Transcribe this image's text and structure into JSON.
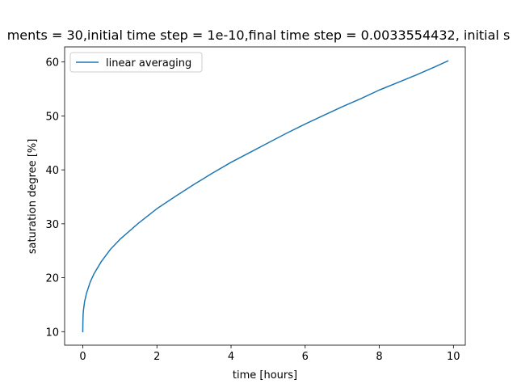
{
  "chart_data": {
    "type": "line",
    "title": "ments = 30,initial time step = 1e-10,final time step = 0.0033554432, initial s",
    "xlabel": "time [hours]",
    "ylabel": "saturation degree [%]",
    "xlim": [
      -0.49,
      10.32
    ],
    "ylim": [
      7.5,
      62.8
    ],
    "xticks": [
      "0",
      "2",
      "4",
      "6",
      "8",
      "10"
    ],
    "yticks": [
      "10",
      "20",
      "30",
      "40",
      "50",
      "60"
    ],
    "grid": false,
    "legend_position": "upper-left",
    "series": [
      {
        "name": "linear averaging",
        "color": "#1f77b4",
        "x": [
          0,
          0.001,
          0.005,
          0.01,
          0.02,
          0.05,
          0.1,
          0.2,
          0.3,
          0.5,
          0.75,
          1.0,
          1.5,
          2.0,
          2.5,
          3.0,
          3.5,
          4.0,
          4.5,
          5.0,
          5.5,
          6.0,
          6.5,
          7.0,
          7.5,
          8.0,
          8.5,
          9.0,
          9.5,
          9.85
        ],
        "y": [
          10.0,
          11.1,
          12.4,
          13.3,
          14.1,
          15.6,
          17.1,
          19.2,
          20.7,
          23.0,
          25.3,
          27.1,
          30.1,
          32.8,
          35.1,
          37.3,
          39.4,
          41.4,
          43.2,
          45.0,
          46.8,
          48.5,
          50.1,
          51.7,
          53.2,
          54.8,
          56.2,
          57.6,
          59.1,
          60.2
        ]
      }
    ]
  }
}
